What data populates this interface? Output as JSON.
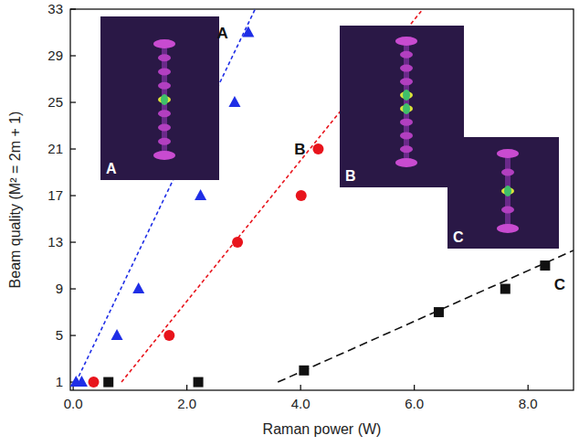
{
  "chart_data": {
    "type": "scatter",
    "xlabel": "Raman power (W)",
    "ylabel": "Beam quality (M² = 2m + 1)",
    "xlim": [
      -0.05,
      8.8
    ],
    "xticks": [
      {
        "value": 0,
        "label": "0.0"
      },
      {
        "value": 2,
        "label": "2.0"
      },
      {
        "value": 4,
        "label": "4.0"
      },
      {
        "value": 6,
        "label": "6.0"
      },
      {
        "value": 8,
        "label": "8.0"
      }
    ],
    "ylim": [
      0.3,
      33
    ],
    "yticks": [
      1,
      5,
      9,
      13,
      17,
      21,
      25,
      29,
      33
    ],
    "grid": false,
    "series": [
      {
        "name": "A",
        "type": "scatter",
        "marker": "triangle",
        "color": "#1f2ee6",
        "x": [
          0.05,
          0.15,
          0.77,
          1.15,
          2.24,
          2.84,
          3.08
        ],
        "values": [
          1,
          1,
          5,
          9,
          17,
          25,
          31
        ]
      },
      {
        "name": "B",
        "type": "scatter",
        "marker": "circle",
        "color": "#e8141c",
        "x": [
          0.36,
          1.69,
          2.89,
          4.01,
          4.31
        ],
        "values": [
          1,
          5,
          13,
          17,
          21
        ]
      },
      {
        "name": "C",
        "type": "scatter",
        "marker": "square",
        "color": "#111111",
        "x": [
          0.62,
          2.2,
          4.06,
          6.43,
          7.6,
          8.3
        ],
        "values": [
          1,
          1,
          2,
          7,
          9,
          11
        ]
      },
      {
        "type": "line",
        "line_style": "dashed",
        "color": "#1f2ee6",
        "x": [
          0.05,
          3.2
        ],
        "values": [
          1,
          33
        ]
      },
      {
        "type": "line",
        "line_style": "dashed",
        "color": "#e8141c",
        "x": [
          0.85,
          6.15
        ],
        "values": [
          1,
          33
        ]
      },
      {
        "type": "line",
        "line_style": "dashed",
        "color": "#111111",
        "x": [
          3.6,
          8.8
        ],
        "values": [
          1,
          12.3
        ]
      }
    ],
    "insets": [
      {
        "label": "A"
      },
      {
        "label": "B"
      },
      {
        "label": "C"
      }
    ]
  }
}
